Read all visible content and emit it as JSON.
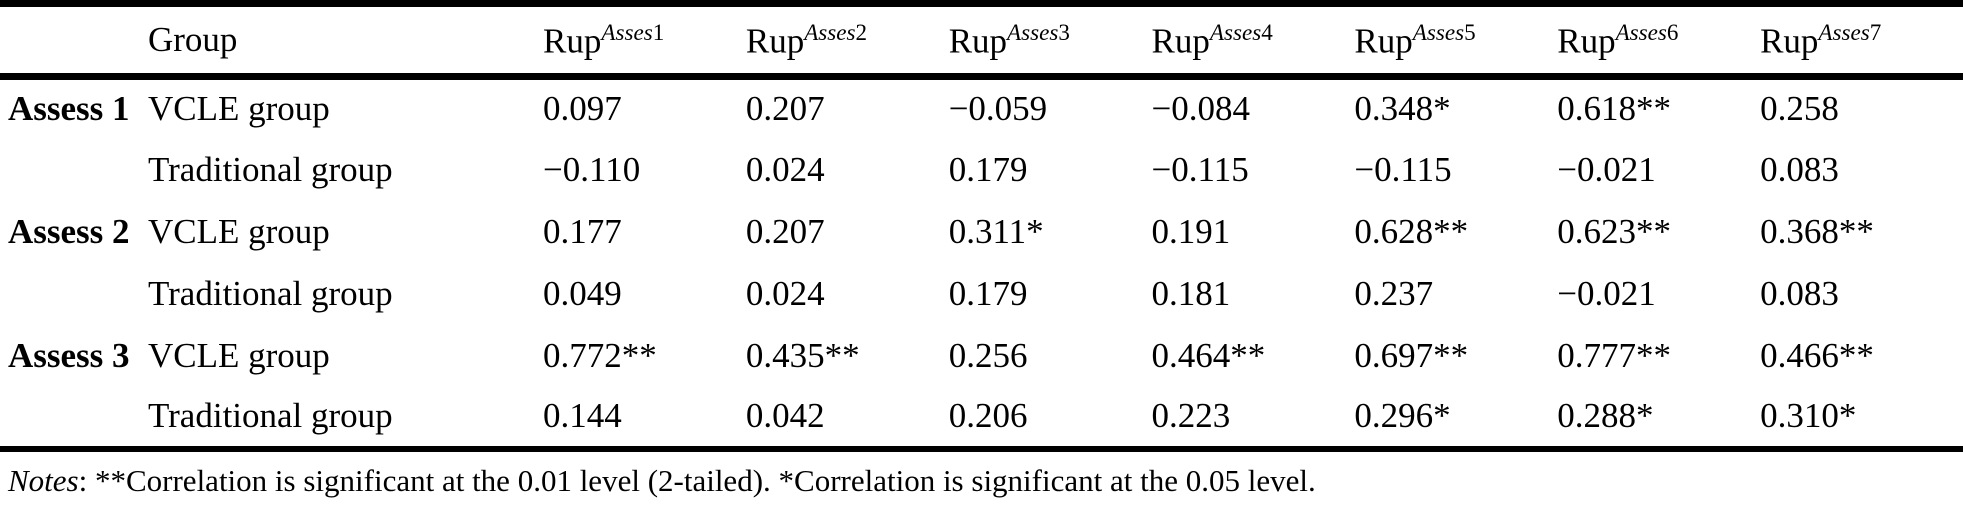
{
  "table": {
    "corner_label": "",
    "group_header": "Group",
    "columns": [
      {
        "base": "Rup",
        "sup_word": "Asses",
        "sup_num": "1"
      },
      {
        "base": "Rup",
        "sup_word": "Asses",
        "sup_num": "2"
      },
      {
        "base": "Rup",
        "sup_word": "Asses",
        "sup_num": "3"
      },
      {
        "base": "Rup",
        "sup_word": "Asses",
        "sup_num": "4"
      },
      {
        "base": "Rup",
        "sup_word": "Asses",
        "sup_num": "5"
      },
      {
        "base": "Rup",
        "sup_word": "Asses",
        "sup_num": "6"
      },
      {
        "base": "Rup",
        "sup_word": "Asses",
        "sup_num": "7"
      }
    ],
    "rows": [
      {
        "assess": "Assess 1",
        "group": "VCLE group",
        "values": [
          "0.097",
          "0.207",
          "−0.059",
          "−0.084",
          "0.348*",
          "0.618**",
          "0.258"
        ]
      },
      {
        "assess": "",
        "group": "Traditional group",
        "values": [
          "−0.110",
          "0.024",
          "0.179",
          "−0.115",
          "−0.115",
          "−0.021",
          "0.083"
        ]
      },
      {
        "assess": "Assess 2",
        "group": "VCLE group",
        "values": [
          "0.177",
          "0.207",
          "0.311*",
          "0.191",
          "0.628**",
          "0.623**",
          "0.368**"
        ]
      },
      {
        "assess": "",
        "group": "Traditional group",
        "values": [
          "0.049",
          "0.024",
          "0.179",
          "0.181",
          "0.237",
          "−0.021",
          "0.083"
        ]
      },
      {
        "assess": "Assess 3",
        "group": "VCLE group",
        "values": [
          "0.772**",
          "0.435**",
          "0.256",
          "0.464**",
          "0.697**",
          "0.777**",
          "0.466**"
        ]
      },
      {
        "assess": "",
        "group": "Traditional group",
        "values": [
          "0.144",
          "0.042",
          "0.206",
          "0.223",
          "0.296*",
          "0.288*",
          "0.310*"
        ]
      }
    ],
    "notes": {
      "label": "Notes",
      "text": ": **Correlation is significant at the 0.01 level (2-tailed). *Correlation is significant at the 0.05 level."
    }
  }
}
